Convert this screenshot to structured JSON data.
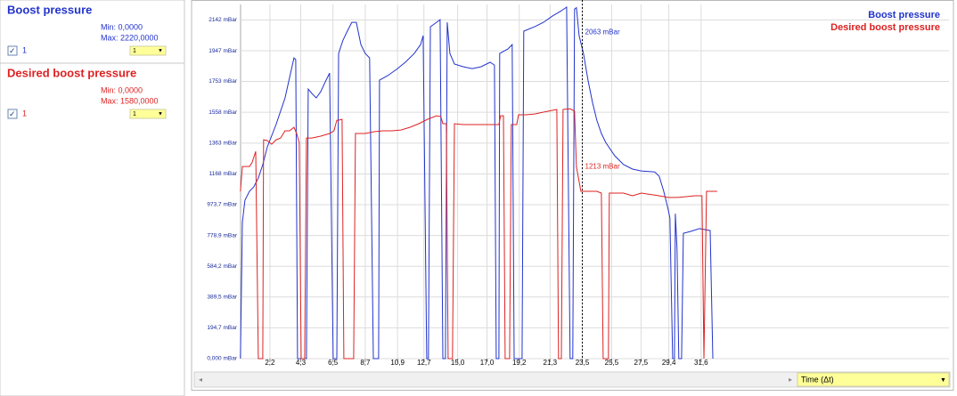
{
  "x_selector": "Time (Δt)",
  "sidebar": [
    {
      "min": "Min: 0,0000",
      "max": "Max: 2220,0000",
      "check_label": "1",
      "select": "1"
    },
    {
      "min": "Min: 0,0000",
      "max": "Max: 1580,0000",
      "check_label": "1",
      "select": "1"
    }
  ],
  "chart_data": {
    "type": "line",
    "grid": true,
    "legend": "top-right",
    "xlim": [
      0.2,
      48.5
    ],
    "xticks": [
      {
        "value": 2.2,
        "label": "2,2"
      },
      {
        "value": 4.3,
        "label": "4,3"
      },
      {
        "value": 6.5,
        "label": "6,5"
      },
      {
        "value": 8.7,
        "label": "8,7"
      },
      {
        "value": 10.9,
        "label": "10,9"
      },
      {
        "value": 12.7,
        "label": "12,7"
      },
      {
        "value": 15.0,
        "label": "15,0"
      },
      {
        "value": 17.0,
        "label": "17,0"
      },
      {
        "value": 19.2,
        "label": "19,2"
      },
      {
        "value": 21.3,
        "label": "21,3"
      },
      {
        "value": 23.5,
        "label": "23,5"
      },
      {
        "value": 25.5,
        "label": "25,5"
      },
      {
        "value": 27.5,
        "label": "27,5"
      },
      {
        "value": 29.4,
        "label": "29,4"
      },
      {
        "value": 31.6,
        "label": "31,6"
      }
    ],
    "ylim": [
      0,
      2240
    ],
    "yticks": [
      {
        "value": 0,
        "label": "0,000 mBar"
      },
      {
        "value": 194.7,
        "label": "194,7 mBar"
      },
      {
        "value": 389.5,
        "label": "389,5 mBar"
      },
      {
        "value": 584.2,
        "label": "584,2 mBar"
      },
      {
        "value": 778.9,
        "label": "778,9 mBar"
      },
      {
        "value": 973.7,
        "label": "973,7 mBar"
      },
      {
        "value": 1168,
        "label": "1168 mBar"
      },
      {
        "value": 1363,
        "label": "1363 mBar"
      },
      {
        "value": 1558,
        "label": "1558 mBar"
      },
      {
        "value": 1753,
        "label": "1753 mBar"
      },
      {
        "value": 1947,
        "label": "1947 mBar"
      },
      {
        "value": 2142,
        "label": "2142 mBar"
      }
    ],
    "cursor": 23.5,
    "annotations": [
      {
        "text": "2063 mBar",
        "value": 2063,
        "series": 0
      },
      {
        "text": "1213 mBar",
        "value": 1213,
        "series": 1
      }
    ],
    "series": [
      {
        "name": "Boost pressure",
        "color": "#2233cc",
        "x": [
          0.19,
          0.32,
          0.5,
          0.8,
          1.1,
          1.41,
          1.71,
          2.02,
          2.62,
          3.23,
          3.84,
          3.96,
          4.08,
          4.69,
          4.81,
          5.06,
          5.36,
          5.66,
          5.97,
          6.27,
          6.51,
          6.76,
          6.88,
          7.18,
          7.48,
          7.78,
          8.09,
          8.4,
          8.7,
          9.0,
          9.25,
          9.61,
          9.67,
          10.22,
          10.83,
          11.43,
          12.04,
          12.47,
          12.65,
          12.89,
          13.01,
          13.14,
          13.56,
          13.8,
          13.99,
          14.17,
          14.29,
          14.47,
          14.78,
          15.38,
          15.99,
          16.6,
          17.21,
          17.51,
          17.63,
          17.81,
          17.87,
          18.42,
          18.72,
          18.85,
          19.39,
          19.51,
          20.24,
          20.85,
          21.46,
          22.07,
          22.43,
          22.67,
          22.85,
          22.97,
          23.1,
          23.28,
          23.58,
          23.89,
          24.19,
          24.49,
          24.8,
          25.1,
          25.71,
          26.31,
          26.92,
          27.53,
          28.44,
          28.74,
          29.05,
          29.35,
          29.47,
          29.66,
          29.78,
          29.84,
          29.96,
          30.08,
          30.27,
          30.39,
          30.87,
          31.48,
          32.22,
          32.4
        ],
        "values": [
          0,
          861,
          1002,
          1058,
          1086,
          1142,
          1227,
          1339,
          1480,
          1649,
          1902,
          1891,
          0,
          0,
          1705,
          1677,
          1649,
          1688,
          1750,
          1806,
          0,
          0,
          1930,
          2014,
          2071,
          2127,
          2127,
          1986,
          1930,
          1902,
          0,
          0,
          1761,
          1789,
          1829,
          1874,
          1930,
          1986,
          2043,
          0,
          0,
          2099,
          2127,
          2144,
          0,
          0,
          2127,
          1930,
          1863,
          1846,
          1834,
          1846,
          1874,
          1857,
          0,
          0,
          1930,
          1958,
          1986,
          0,
          0,
          2071,
          2099,
          2127,
          2166,
          2200,
          2223,
          0,
          0,
          2211,
          2220,
          2043,
          1930,
          1761,
          1621,
          1508,
          1424,
          1367,
          1283,
          1227,
          1199,
          1187,
          1181,
          1153,
          1058,
          945,
          889,
          0,
          0,
          917,
          692,
          0,
          0,
          793,
          804,
          822,
          810,
          0
        ]
      },
      {
        "name": "Desired boost pressure",
        "color": "#dd2222",
        "x": [
          0.19,
          0.32,
          0.8,
          0.98,
          1.23,
          1.41,
          1.71,
          1.77,
          2.02,
          2.32,
          2.62,
          2.93,
          3.23,
          3.54,
          3.84,
          4.02,
          4.2,
          4.33,
          4.57,
          4.69,
          5.06,
          5.66,
          6.27,
          6.57,
          6.76,
          6.88,
          7.12,
          7.24,
          7.91,
          8.03,
          8.7,
          9.31,
          9.91,
          10.52,
          11.13,
          11.74,
          12.35,
          12.95,
          13.56,
          13.86,
          13.99,
          14.23,
          14.35,
          14.65,
          14.78,
          15.38,
          16.6,
          17.81,
          17.93,
          18.12,
          18.24,
          18.54,
          18.66,
          19.03,
          19.15,
          19.64,
          20.24,
          20.85,
          21.46,
          21.76,
          21.88,
          22.07,
          22.19,
          22.67,
          22.97,
          23.1,
          23.4,
          23.58,
          24.49,
          24.8,
          24.92,
          25.28,
          25.34,
          26.31,
          26.92,
          27.53,
          28.74,
          29.35,
          29.96,
          31.18,
          31.66,
          31.79,
          31.97,
          32.7
        ],
        "values": [
          1058,
          1215,
          1215,
          1238,
          1311,
          0,
          0,
          1384,
          1379,
          1356,
          1384,
          1395,
          1441,
          1441,
          1463,
          1424,
          1367,
          0,
          0,
          1395,
          1395,
          1407,
          1424,
          1441,
          1508,
          1508,
          1514,
          0,
          0,
          1424,
          1424,
          1435,
          1441,
          1441,
          1446,
          1463,
          1486,
          1514,
          1536,
          1531,
          1486,
          1486,
          0,
          0,
          1486,
          1480,
          1480,
          1480,
          1536,
          1536,
          0,
          0,
          1480,
          1480,
          1542,
          1542,
          1547,
          1559,
          1570,
          1576,
          0,
          0,
          1576,
          1580,
          1565,
          1213,
          1058,
          1058,
          1058,
          1047,
          0,
          0,
          1047,
          1047,
          1030,
          1047,
          1030,
          1019,
          1019,
          1030,
          1030,
          0,
          1058,
          1058
        ]
      }
    ]
  }
}
